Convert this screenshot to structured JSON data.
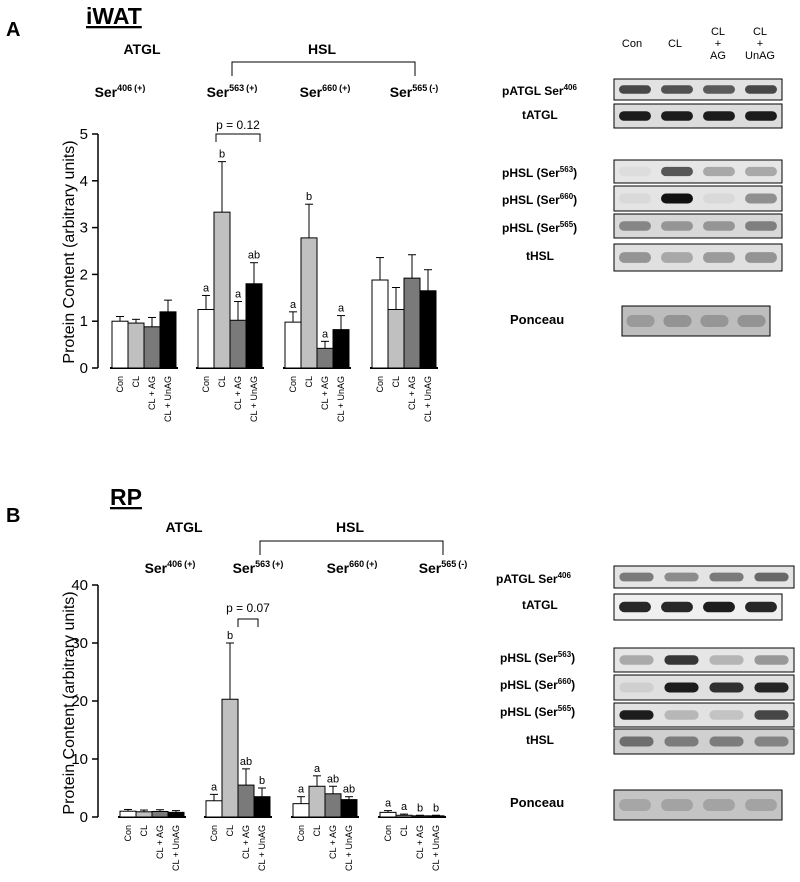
{
  "panels": [
    {
      "letter": "A",
      "title": "iWAT",
      "atgl_label": "ATGL",
      "hsl_label": "HSL",
      "sites": [
        {
          "base": "Ser",
          "num": "406",
          "sign": "(+)"
        },
        {
          "base": "Ser",
          "num": "563",
          "sign": "(+)"
        },
        {
          "base": "Ser",
          "num": "660",
          "sign": "(+)"
        },
        {
          "base": "Ser",
          "num": "565",
          "sign": "(-)"
        }
      ],
      "sig_bracket": "p = 0.12",
      "blot_headers": [
        "Con",
        "CL",
        "CL\n+\nAG",
        "CL\n+\nUnAG"
      ],
      "blot_rows": [
        {
          "label": "pATGL Ser",
          "sup": "406",
          "tail": ""
        },
        {
          "label": "tATGL",
          "sup": "",
          "tail": ""
        },
        {
          "label": "pHSL (Ser",
          "sup": "563",
          "tail": ")"
        },
        {
          "label": "pHSL (Ser",
          "sup": "660",
          "tail": ")"
        },
        {
          "label": "pHSL (Ser",
          "sup": "565",
          "tail": ")"
        },
        {
          "label": "tHSL",
          "sup": "",
          "tail": ""
        },
        {
          "label": "Ponceau",
          "sup": "",
          "tail": ""
        }
      ]
    },
    {
      "letter": "B",
      "title": "RP",
      "atgl_label": "ATGL",
      "hsl_label": "HSL",
      "sites": [
        {
          "base": "Ser",
          "num": "406",
          "sign": "(+)"
        },
        {
          "base": "Ser",
          "num": "563",
          "sign": "(+)"
        },
        {
          "base": "Ser",
          "num": "660",
          "sign": "(+)"
        },
        {
          "base": "Ser",
          "num": "565",
          "sign": "(-)"
        }
      ],
      "sig_bracket": "p = 0.07",
      "blot_rows": [
        {
          "label": "pATGL Ser",
          "sup": "406",
          "tail": ""
        },
        {
          "label": "tATGL",
          "sup": "",
          "tail": ""
        },
        {
          "label": "pHSL (Ser",
          "sup": "563",
          "tail": ")"
        },
        {
          "label": "pHSL (Ser",
          "sup": "660",
          "tail": ")"
        },
        {
          "label": "pHSL (Ser",
          "sup": "565",
          "tail": ")"
        },
        {
          "label": "tHSL",
          "sup": "",
          "tail": ""
        },
        {
          "label": "Ponceau",
          "sup": "",
          "tail": ""
        }
      ]
    }
  ],
  "chart_data": [
    {
      "type": "bar",
      "panel": "A",
      "ylabel": "Protein Content (arbitrary units)",
      "ylim": [
        0,
        5
      ],
      "yticks": [
        0,
        1,
        2,
        3,
        4,
        5
      ],
      "groups": [
        "Ser406",
        "Ser563",
        "Ser660",
        "Ser565"
      ],
      "bar_labels": [
        "Con",
        "CL",
        "CL + AG",
        "CL + UnAG"
      ],
      "bar_colors": [
        "#ffffff",
        "#c0c0c0",
        "#7a7a7a",
        "#000000"
      ],
      "values": [
        [
          1.0,
          0.96,
          0.88,
          1.2
        ],
        [
          1.25,
          3.33,
          1.02,
          1.8
        ],
        [
          0.98,
          2.78,
          0.42,
          0.82
        ],
        [
          1.88,
          1.25,
          1.92,
          1.65
        ]
      ],
      "errors": [
        [
          0.1,
          0.08,
          0.2,
          0.25
        ],
        [
          0.3,
          1.08,
          0.4,
          0.45
        ],
        [
          0.22,
          0.72,
          0.15,
          0.3
        ],
        [
          0.48,
          0.47,
          0.5,
          0.45
        ]
      ],
      "letters": [
        [
          "",
          "",
          "",
          ""
        ],
        [
          "a",
          "b",
          "a",
          "ab"
        ],
        [
          "a",
          "b",
          "a",
          "a"
        ],
        [
          "",
          "",
          "",
          ""
        ]
      ]
    },
    {
      "type": "bar",
      "panel": "B",
      "ylabel": "Protein Content (arbitrary units)",
      "ylim": [
        0,
        40
      ],
      "yticks": [
        0,
        10,
        20,
        30,
        40
      ],
      "groups": [
        "Ser406",
        "Ser563",
        "Ser660",
        "Ser565"
      ],
      "bar_labels": [
        "Con",
        "CL",
        "CL + AG",
        "CL + UnAG"
      ],
      "bar_colors": [
        "#ffffff",
        "#c0c0c0",
        "#7a7a7a",
        "#000000"
      ],
      "values": [
        [
          1.0,
          0.9,
          0.95,
          0.8
        ],
        [
          2.8,
          20.3,
          5.5,
          3.5
        ],
        [
          2.3,
          5.3,
          4.0,
          3.0
        ],
        [
          0.8,
          0.3,
          0.2,
          0.2
        ]
      ],
      "errors": [
        [
          0.3,
          0.3,
          0.3,
          0.3
        ],
        [
          1.1,
          9.7,
          2.8,
          1.5
        ],
        [
          1.2,
          1.8,
          1.3,
          0.5
        ],
        [
          0.3,
          0.2,
          0.1,
          0.1
        ]
      ],
      "letters": [
        [
          "",
          "",
          "",
          ""
        ],
        [
          "a",
          "b",
          "ab",
          "b"
        ],
        [
          "a",
          "a",
          "ab",
          "ab"
        ],
        [
          "a",
          "a",
          "b",
          "b"
        ]
      ]
    }
  ]
}
